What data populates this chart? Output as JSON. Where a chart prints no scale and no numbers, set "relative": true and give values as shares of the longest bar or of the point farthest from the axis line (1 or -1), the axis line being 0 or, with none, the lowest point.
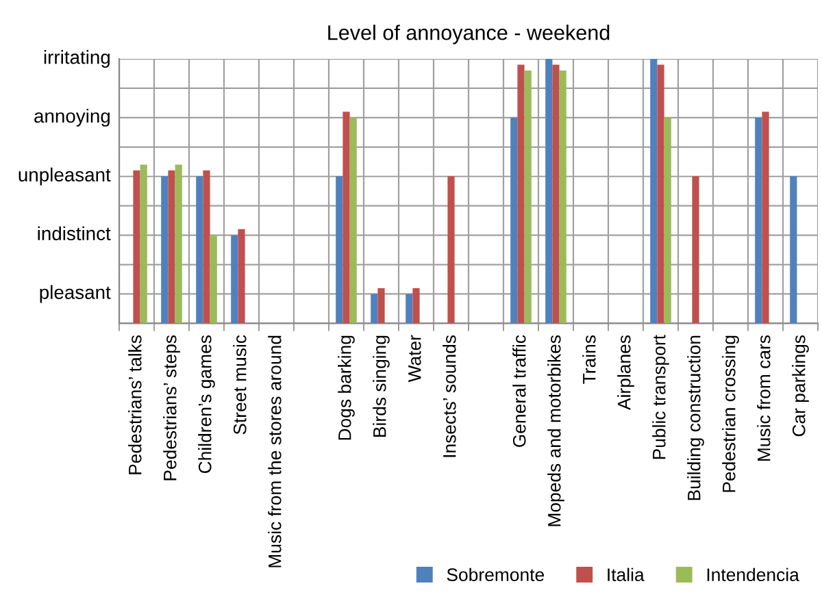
{
  "chart_data": {
    "type": "bar",
    "title": "Level of annoyance - weekend",
    "categories": [
      "Pedestrians’ talks",
      "Pedestrians’ steps",
      "Children’s games",
      "Street music",
      "Music from the stores around",
      null,
      "Dogs barking",
      "Birds singing",
      "Water",
      "Insects’ sounds",
      null,
      "General traffic",
      "Mopeds and motorbikes",
      "Trains",
      "Airplanes",
      "Public transport",
      "Building construction",
      "Pedestrian crossing",
      "Music from cars",
      "Car parkings"
    ],
    "relative": true,
    "series": [
      {
        "name": "Sobremonte",
        "color": "#4f81bd",
        "values": [
          null,
          0.556,
          0.556,
          0.333,
          null,
          null,
          0.556,
          0.111,
          0.111,
          null,
          null,
          0.778,
          1,
          null,
          null,
          1,
          null,
          null,
          0.778,
          0.556
        ]
      },
      {
        "name": "Italia",
        "color": "#c0504d",
        "values": [
          0.578,
          0.578,
          0.578,
          0.356,
          null,
          null,
          0.8,
          0.133,
          0.133,
          0.556,
          null,
          0.978,
          0.978,
          null,
          null,
          0.978,
          0.556,
          null,
          0.8,
          null
        ]
      },
      {
        "name": "Intendencia",
        "color": "#9bbb59",
        "values": [
          0.6,
          0.6,
          0.333,
          null,
          null,
          null,
          0.778,
          null,
          null,
          null,
          null,
          0.956,
          0.956,
          null,
          null,
          0.778,
          null,
          null,
          null,
          null
        ]
      }
    ],
    "annotations": [
      "pleasant",
      "indistinct",
      "unpleasant",
      "annoying",
      "irritating"
    ],
    "grid": true,
    "legend": "bottom right"
  }
}
